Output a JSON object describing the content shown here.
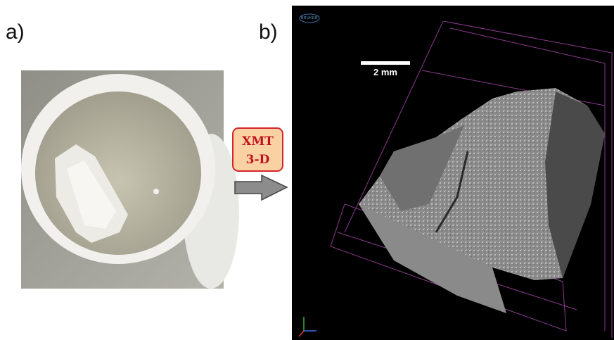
{
  "labels": {
    "a": "a)",
    "b": "b)"
  },
  "arrow": {
    "line1": "XMT",
    "line2": "3-D"
  },
  "scale_bar": {
    "label": "2 mm"
  },
  "logo": "BRUKER"
}
